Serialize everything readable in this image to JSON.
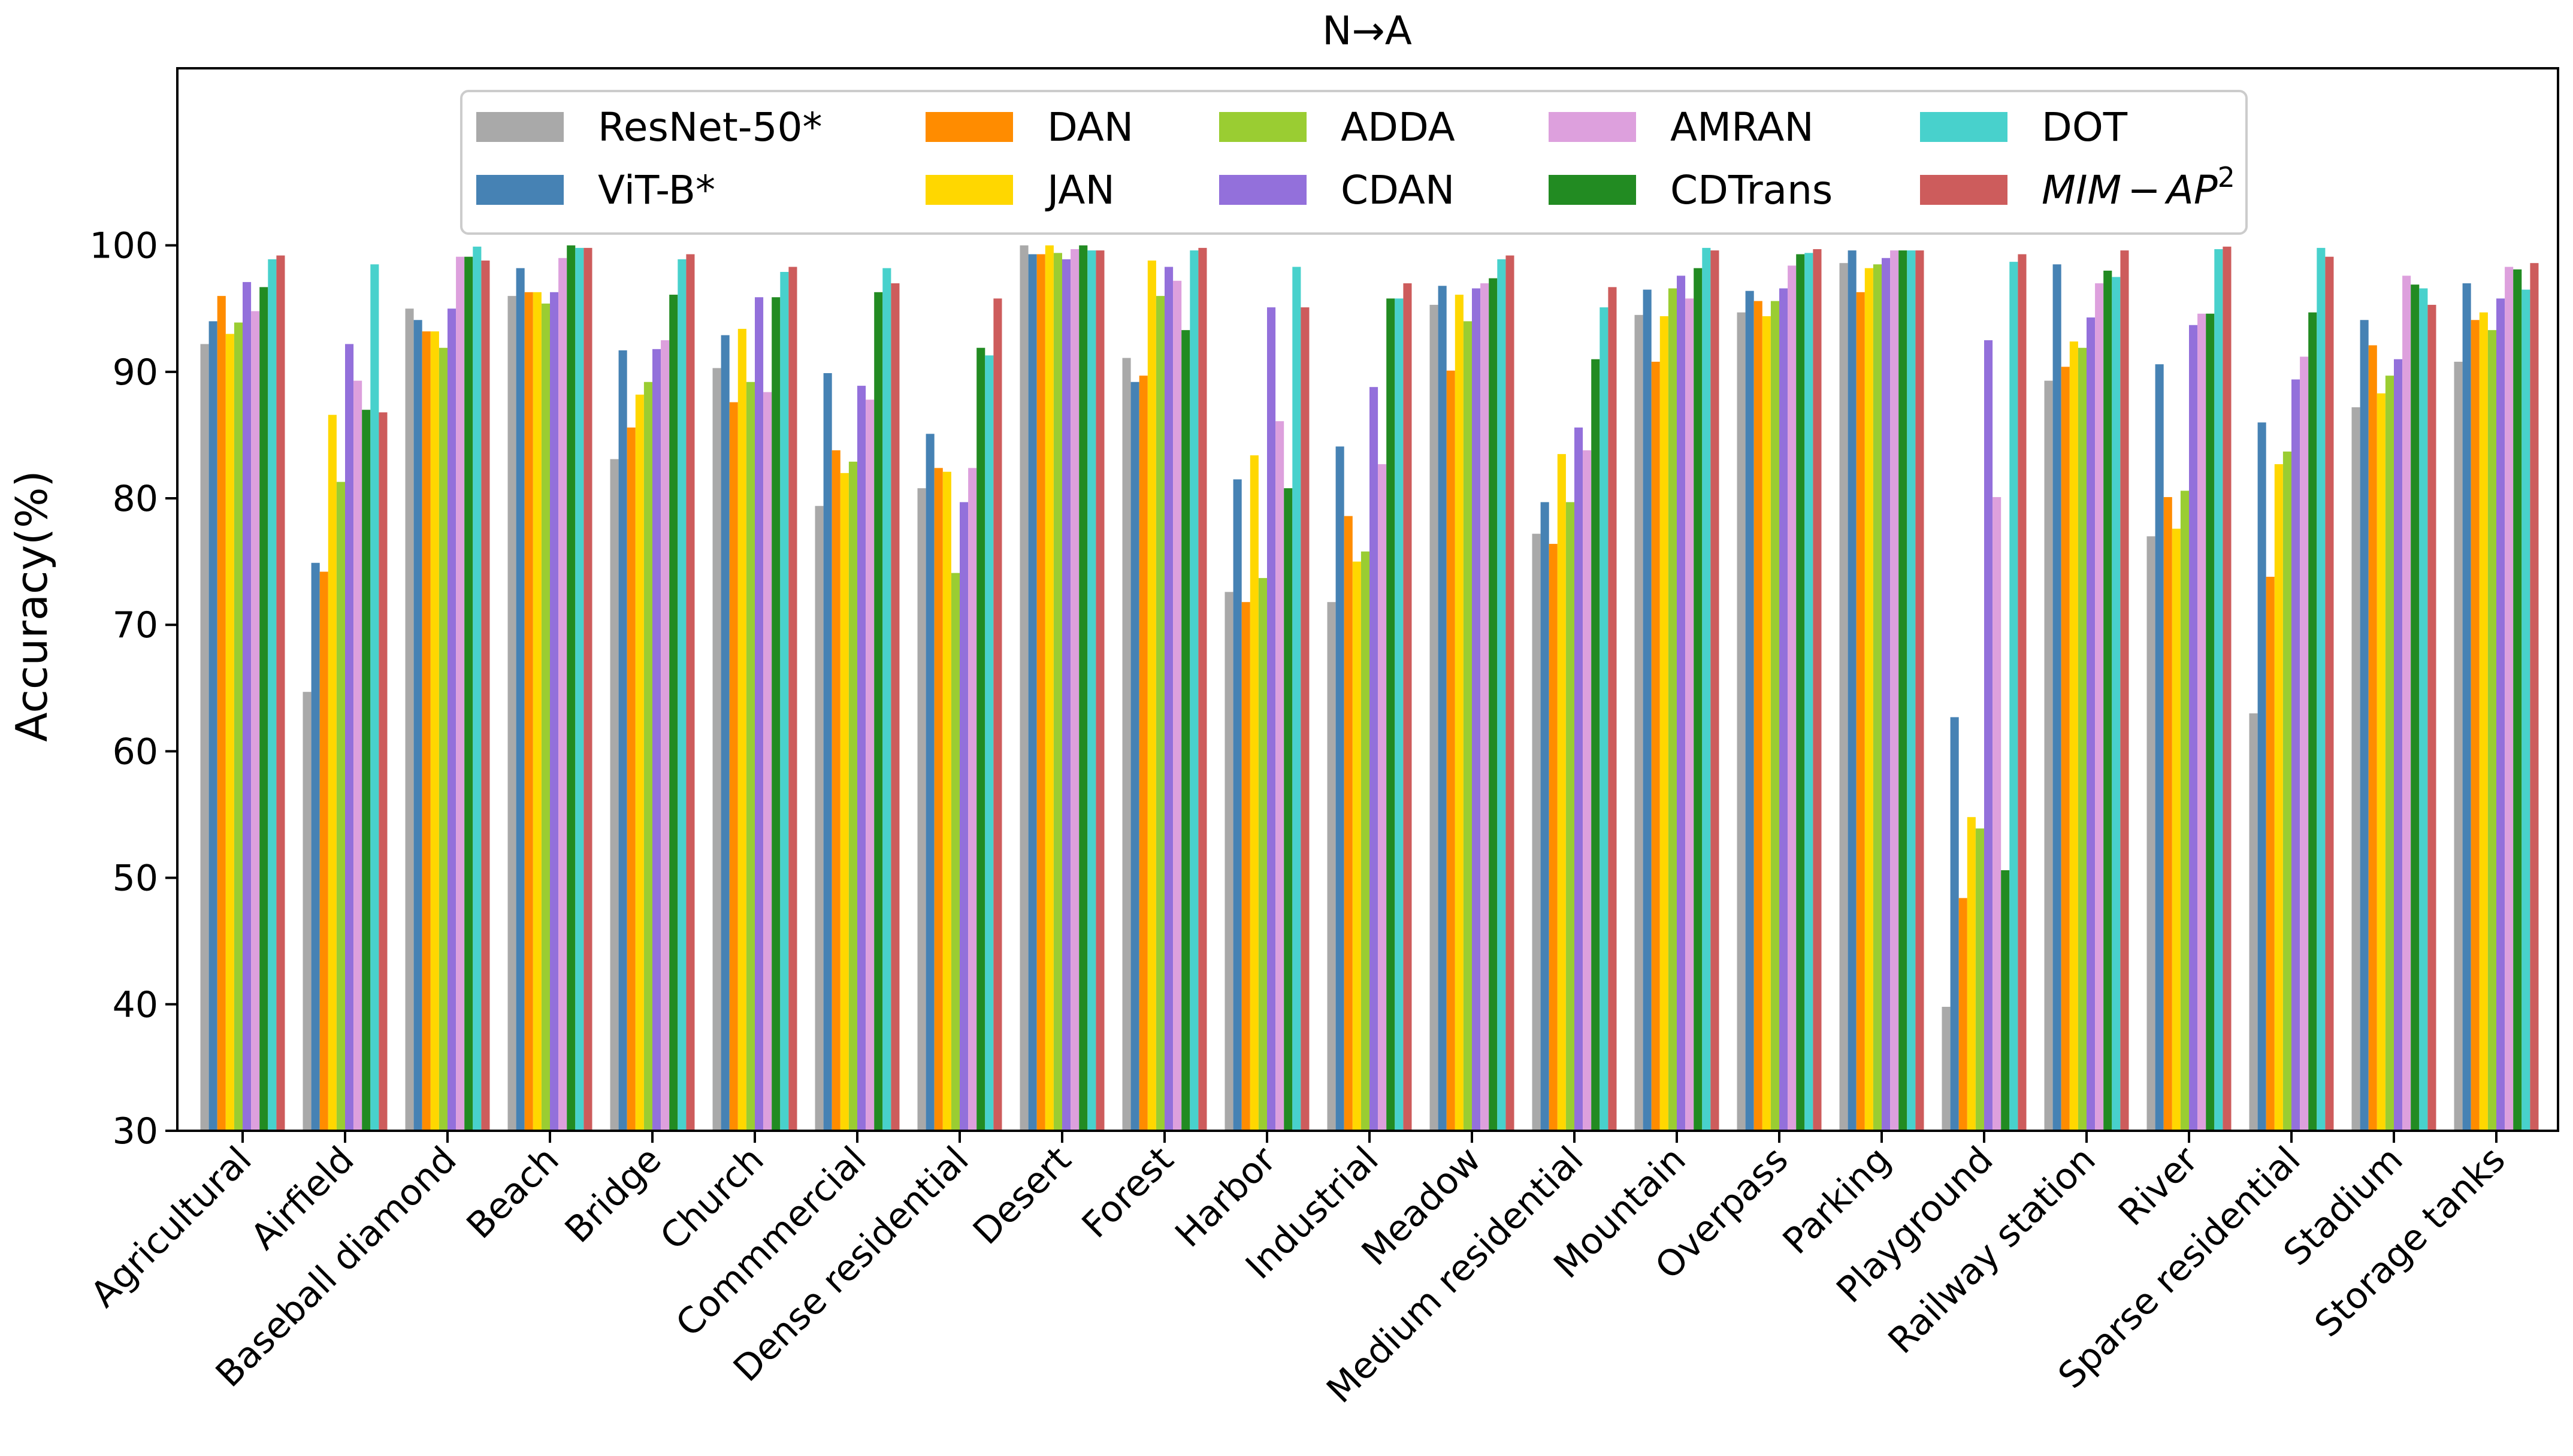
{
  "chart_data": {
    "type": "bar",
    "title": "N→A",
    "xlabel": "",
    "ylabel": "Accuracy(%)",
    "ylim": [
      30,
      114
    ],
    "yticks": [
      30,
      40,
      50,
      60,
      70,
      80,
      90,
      100
    ],
    "grid": false,
    "legend_position": "top-center",
    "categories": [
      "Agricultural",
      "Airfield",
      "Baseball diamond",
      "Beach",
      "Bridge",
      "Church",
      "Commmercial",
      "Dense residential",
      "Desert",
      "Forest",
      "Harbor",
      "Industrial",
      "Meadow",
      "Medium residential",
      "Mountain",
      "Overpass",
      "Parking",
      "Playground",
      "Railway station",
      "River",
      "Sparse residential",
      "Stadium",
      "Storage tanks"
    ],
    "series": [
      {
        "name": "ResNet-50*",
        "color": "#a9a9a9",
        "values": [
          92.2,
          64.7,
          95.0,
          96.0,
          83.1,
          90.3,
          79.4,
          80.8,
          100.0,
          91.1,
          72.6,
          71.8,
          95.3,
          77.2,
          94.5,
          94.7,
          98.6,
          39.8,
          89.3,
          77.0,
          63.0,
          87.2,
          90.8
        ]
      },
      {
        "name": "ViT-B*",
        "color": "#4682b4",
        "values": [
          94.0,
          74.9,
          94.1,
          98.2,
          91.7,
          92.9,
          89.9,
          85.1,
          99.3,
          89.2,
          81.5,
          84.1,
          96.8,
          79.7,
          96.5,
          96.4,
          99.6,
          62.7,
          98.5,
          90.6,
          86.0,
          94.1,
          97.0
        ]
      },
      {
        "name": "DAN",
        "color": "#ff8c00",
        "values": [
          96.0,
          74.2,
          93.2,
          96.3,
          85.6,
          87.6,
          83.8,
          82.4,
          99.3,
          89.7,
          71.8,
          78.6,
          90.1,
          76.4,
          90.8,
          95.6,
          96.3,
          48.4,
          90.4,
          80.1,
          73.8,
          92.1,
          94.1
        ]
      },
      {
        "name": "JAN",
        "color": "#ffd700",
        "values": [
          93.0,
          86.6,
          93.2,
          96.3,
          88.2,
          93.4,
          82.0,
          82.1,
          100.0,
          98.8,
          83.4,
          75.0,
          96.1,
          83.5,
          94.4,
          94.4,
          98.2,
          54.8,
          92.4,
          77.6,
          82.7,
          88.3,
          94.7
        ]
      },
      {
        "name": "ADDA",
        "color": "#9acd32",
        "values": [
          93.9,
          81.3,
          91.9,
          95.4,
          89.2,
          89.2,
          82.9,
          74.1,
          99.4,
          96.0,
          73.7,
          75.8,
          94.0,
          79.7,
          96.6,
          95.6,
          98.5,
          53.9,
          91.9,
          80.6,
          83.7,
          89.7,
          93.3
        ]
      },
      {
        "name": "CDAN",
        "color": "#9370db",
        "values": [
          97.1,
          92.2,
          95.0,
          96.3,
          91.8,
          95.9,
          88.9,
          79.7,
          98.9,
          98.3,
          95.1,
          88.8,
          96.6,
          85.6,
          97.6,
          96.6,
          99.0,
          92.5,
          94.3,
          93.7,
          89.4,
          91.0,
          95.8
        ]
      },
      {
        "name": "AMRAN",
        "color": "#dda0dd",
        "values": [
          94.8,
          89.3,
          99.1,
          99.0,
          92.5,
          88.4,
          87.8,
          82.4,
          99.7,
          97.2,
          86.1,
          82.7,
          97.0,
          83.8,
          95.8,
          98.4,
          99.6,
          80.1,
          97.0,
          94.6,
          91.2,
          97.6,
          98.3
        ]
      },
      {
        "name": "CDTrans",
        "color": "#228b22",
        "values": [
          96.7,
          87.0,
          99.1,
          100.0,
          96.1,
          95.9,
          96.3,
          91.9,
          100.0,
          93.3,
          80.8,
          95.8,
          97.4,
          91.0,
          98.2,
          99.3,
          99.6,
          50.6,
          98.0,
          94.6,
          94.7,
          96.9,
          98.1
        ]
      },
      {
        "name": "DOT",
        "color": "#48d1cc",
        "values": [
          98.9,
          98.5,
          99.9,
          99.8,
          98.9,
          97.9,
          98.2,
          91.3,
          99.6,
          99.6,
          98.3,
          95.8,
          98.9,
          95.1,
          99.8,
          99.4,
          99.6,
          98.7,
          97.5,
          99.7,
          99.8,
          96.6,
          96.5
        ]
      },
      {
        "name": "MIM−AP²",
        "color": "#cd5c5c",
        "values": [
          99.2,
          86.8,
          98.8,
          99.8,
          99.3,
          98.3,
          97.0,
          95.8,
          99.6,
          99.8,
          95.1,
          97.0,
          99.2,
          96.7,
          99.6,
          99.7,
          99.6,
          99.3,
          99.6,
          99.9,
          99.1,
          95.3,
          98.6
        ]
      }
    ]
  },
  "legend": {
    "mim_base": "MIM",
    "mim_minus": "−",
    "mim_ap": "AP",
    "mim_sup": "2"
  }
}
